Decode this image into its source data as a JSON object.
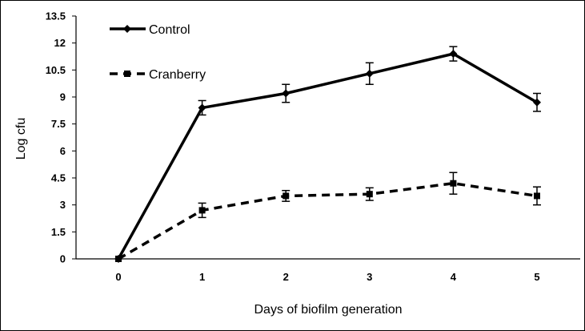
{
  "chart_data": {
    "type": "line",
    "xlabel": "Days of biofilm generation",
    "ylabel": "Log cfu",
    "x": [
      0,
      1,
      2,
      3,
      4,
      5
    ],
    "ylim": [
      0,
      13.5
    ],
    "yticks": [
      "0",
      "1.5",
      "3",
      "4.5",
      "6",
      "7.5",
      "9",
      "10.5",
      "12",
      "13.5"
    ],
    "xticks": [
      "0",
      "1",
      "2",
      "3",
      "4",
      "5"
    ],
    "grid": false,
    "legend_position": "top-left",
    "series": [
      {
        "name": "Control",
        "values": [
          0,
          8.4,
          9.2,
          10.3,
          11.4,
          8.7
        ],
        "errors": [
          0,
          0.4,
          0.5,
          0.6,
          0.4,
          0.5
        ],
        "marker": "diamond",
        "line_style": "solid",
        "color": "#000000"
      },
      {
        "name": "Cranberry",
        "values": [
          0,
          2.7,
          3.5,
          3.6,
          4.2,
          3.5
        ],
        "errors": [
          0,
          0.4,
          0.3,
          0.35,
          0.6,
          0.5
        ],
        "marker": "square",
        "line_style": "dashed",
        "color": "#000000"
      }
    ]
  }
}
